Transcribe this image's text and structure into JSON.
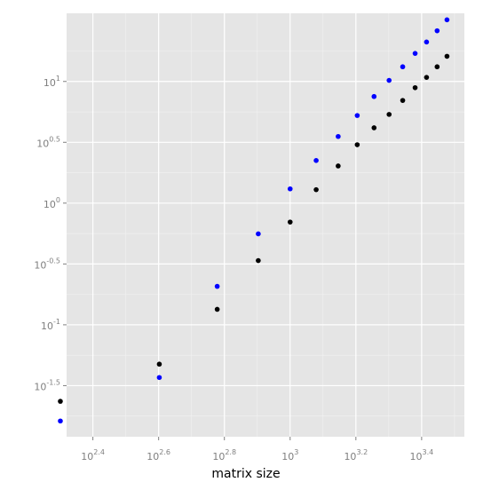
{
  "chart_data": {
    "type": "scatter",
    "title": "",
    "xlabel": "matrix size",
    "ylabel": "",
    "x_scale": "log10",
    "y_scale": "log10",
    "xlim_log10": [
      2.32,
      3.53
    ],
    "ylim_log10": [
      -1.92,
      1.56
    ],
    "x_ticks_log10": [
      2.4,
      2.6,
      2.8,
      3,
      3.2,
      3.4
    ],
    "y_ticks_log10": [
      -1.5,
      -1,
      -0.5,
      0,
      0.5,
      1
    ],
    "x_tick_labels": [
      "10^2.4",
      "10^2.6",
      "10^2.8",
      "10^3",
      "10^3.2",
      "10^3.4"
    ],
    "y_tick_labels": [
      "10^-1.5",
      "10^-1",
      "10^-0.5",
      "10^0",
      "10^0.5",
      "10^1"
    ],
    "grid": true,
    "legend": "none",
    "colors": {
      "panel": "#e5e5e5",
      "grid_major": "#ffffff",
      "grid_minor": "#f2f2f2",
      "black_series": "#000000",
      "blue_series": "#0000ff",
      "tick_label": "#7f7f7f"
    },
    "series": [
      {
        "color": "black",
        "x": [
          200,
          400,
          600,
          800,
          1000,
          1200,
          1400,
          1600,
          1800,
          2000,
          2200,
          2400,
          2600,
          2800,
          3000
        ],
        "y": [
          0.0235,
          0.0475,
          0.134,
          0.337,
          0.699,
          1.29,
          2.02,
          3.02,
          4.16,
          5.36,
          6.98,
          8.89,
          10.8,
          13.2,
          16.1
        ]
      },
      {
        "color": "blue",
        "x": [
          200,
          400,
          600,
          800,
          1000,
          1200,
          1400,
          1600,
          1800,
          2000,
          2200,
          2400,
          2600,
          2800,
          3000
        ],
        "y": [
          0.0162,
          0.0369,
          0.207,
          0.559,
          1.31,
          2.24,
          3.53,
          5.25,
          7.52,
          10.2,
          13.2,
          17.0,
          21.1,
          26.1,
          32.1
        ]
      }
    ]
  }
}
